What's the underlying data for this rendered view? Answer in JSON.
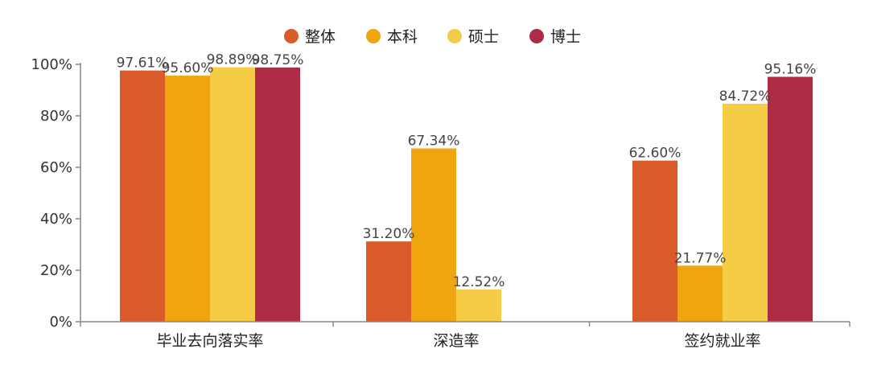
{
  "chart_data": {
    "type": "bar",
    "title": "",
    "xlabel": "",
    "ylabel": "",
    "categories": [
      "毕业去向落实率",
      "深造率",
      "签约就业率"
    ],
    "series": [
      {
        "name": "整体",
        "color": "#D95B2A",
        "values": [
          97.61,
          31.2,
          62.6
        ],
        "labels": [
          "97.61%",
          "31.20%",
          "62.60%"
        ]
      },
      {
        "name": "本科",
        "color": "#EFA50F",
        "values": [
          95.6,
          67.34,
          21.77
        ],
        "labels": [
          "95.60%",
          "67.34%",
          "21.77%"
        ]
      },
      {
        "name": "硕士",
        "color": "#F5CC45",
        "values": [
          98.89,
          12.52,
          84.72
        ],
        "labels": [
          "98.89%",
          "12.52%",
          "84.72%"
        ]
      },
      {
        "name": "博士",
        "color": "#AE2C43",
        "values": [
          98.75,
          null,
          95.16
        ],
        "labels": [
          "98.75%",
          null,
          "95.16%"
        ]
      }
    ],
    "ylim": [
      0,
      100
    ],
    "yticks": [
      0,
      20,
      40,
      60,
      80,
      100
    ],
    "ytick_labels": [
      "0%",
      "20%",
      "40%",
      "60%",
      "80%",
      "100%"
    ],
    "legend_position": "top-center",
    "grid": false
  }
}
